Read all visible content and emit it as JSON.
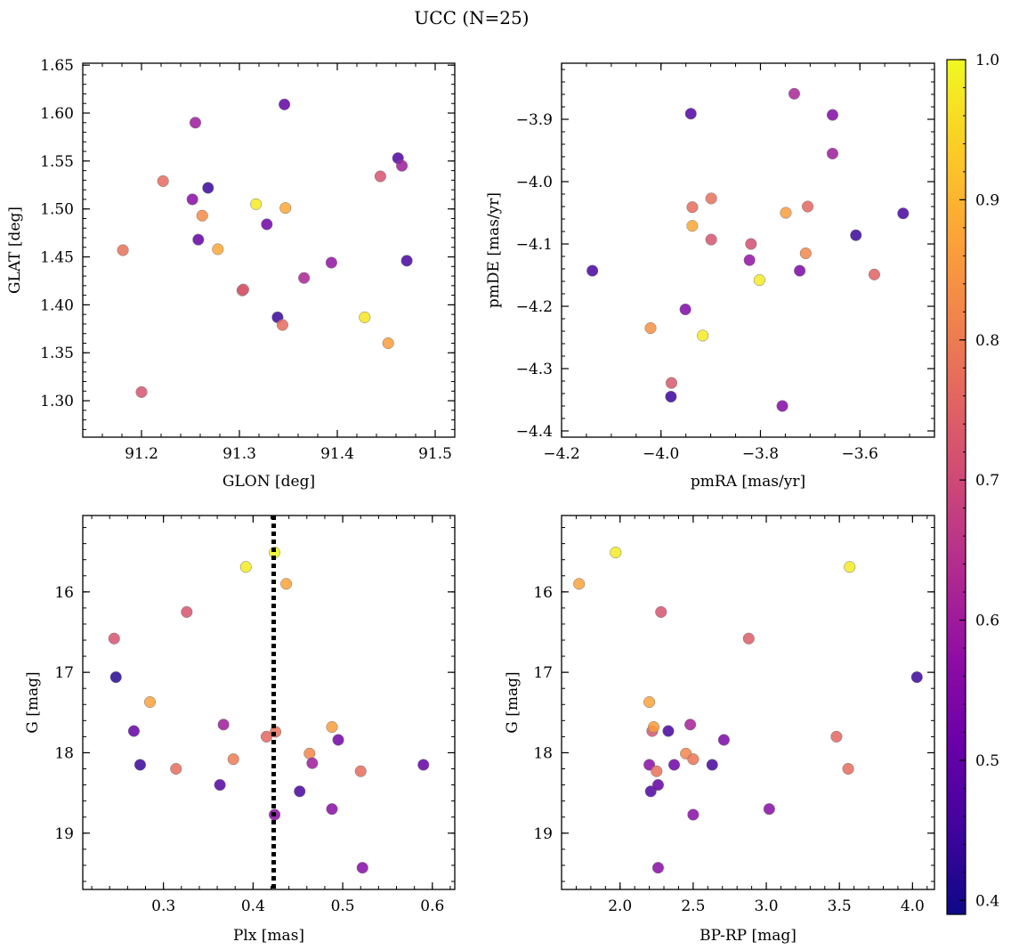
{
  "figure": {
    "title": "UCC (N=25)"
  },
  "colorbar": {
    "colormap": "plasma",
    "range": [
      0.39,
      1.0
    ],
    "ticks": [
      0.4,
      0.5,
      0.6,
      0.7,
      0.8,
      0.9,
      1.0
    ],
    "tick_labels": [
      "0.4",
      "0.5",
      "0.6",
      "0.7",
      "0.8",
      "0.9",
      "1.0"
    ]
  },
  "chart_data": [
    {
      "type": "scatter",
      "id": "glon-glat",
      "xlabel": "GLON [deg]",
      "ylabel": "GLAT [deg]",
      "xlim": [
        91.14,
        91.52
      ],
      "ylim": [
        1.262,
        1.652
      ],
      "y_inverted": false,
      "xticks": [
        91.2,
        91.3,
        91.4,
        91.5
      ],
      "xtick_labels": [
        "91.2",
        "91.3",
        "91.4",
        "91.5"
      ],
      "yticks": [
        1.3,
        1.35,
        1.4,
        1.45,
        1.5,
        1.55,
        1.6,
        1.65
      ],
      "ytick_labels": [
        "1.30",
        "1.35",
        "1.40",
        "1.45",
        "1.50",
        "1.55",
        "1.60",
        "1.65"
      ],
      "x_minor_step": 0.02,
      "y_minor_step": 0.01,
      "points": [
        {
          "x": 91.181,
          "y": 1.457,
          "c": 0.78
        },
        {
          "x": 91.2,
          "y": 1.309,
          "c": 0.72
        },
        {
          "x": 91.222,
          "y": 1.529,
          "c": 0.77
        },
        {
          "x": 91.252,
          "y": 1.51,
          "c": 0.56
        },
        {
          "x": 91.255,
          "y": 1.59,
          "c": 0.6
        },
        {
          "x": 91.258,
          "y": 1.468,
          "c": 0.5
        },
        {
          "x": 91.262,
          "y": 1.493,
          "c": 0.83
        },
        {
          "x": 91.268,
          "y": 1.522,
          "c": 0.44
        },
        {
          "x": 91.278,
          "y": 1.458,
          "c": 0.88
        },
        {
          "x": 91.303,
          "y": 1.415,
          "c": 0.74
        },
        {
          "x": 91.304,
          "y": 1.416,
          "c": 0.73
        },
        {
          "x": 91.317,
          "y": 1.505,
          "c": 0.98
        },
        {
          "x": 91.328,
          "y": 1.484,
          "c": 0.52
        },
        {
          "x": 91.339,
          "y": 1.387,
          "c": 0.44
        },
        {
          "x": 91.344,
          "y": 1.379,
          "c": 0.77
        },
        {
          "x": 91.346,
          "y": 1.609,
          "c": 0.5
        },
        {
          "x": 91.347,
          "y": 1.501,
          "c": 0.88
        },
        {
          "x": 91.366,
          "y": 1.428,
          "c": 0.62
        },
        {
          "x": 91.394,
          "y": 1.444,
          "c": 0.58
        },
        {
          "x": 91.428,
          "y": 1.387,
          "c": 0.97
        },
        {
          "x": 91.444,
          "y": 1.534,
          "c": 0.72
        },
        {
          "x": 91.452,
          "y": 1.36,
          "c": 0.86
        },
        {
          "x": 91.462,
          "y": 1.553,
          "c": 0.47
        },
        {
          "x": 91.466,
          "y": 1.545,
          "c": 0.6
        },
        {
          "x": 91.471,
          "y": 1.446,
          "c": 0.46
        }
      ]
    },
    {
      "type": "scatter",
      "id": "pmra-pmde",
      "xlabel": "pmRA [mas/yr]",
      "ylabel": "pmDE [mas/yr]",
      "xlim": [
        -4.2,
        -3.45
      ],
      "ylim": [
        -4.41,
        -3.81
      ],
      "y_inverted": false,
      "xticks": [
        -4.2,
        -4.0,
        -3.8,
        -3.6
      ],
      "xtick_labels": [
        "−4.2",
        "−4.0",
        "−3.8",
        "−3.6"
      ],
      "yticks": [
        -4.4,
        -4.3,
        -4.2,
        -4.1,
        -4.0,
        -3.9
      ],
      "ytick_labels": [
        "−4.4",
        "−4.3",
        "−4.2",
        "−4.1",
        "−4.0",
        "−3.9"
      ],
      "x_minor_step": 0.05,
      "y_minor_step": 0.02,
      "points": [
        {
          "x": -4.138,
          "y": -4.143,
          "c": 0.46
        },
        {
          "x": -4.021,
          "y": -4.235,
          "c": 0.84
        },
        {
          "x": -3.979,
          "y": -4.323,
          "c": 0.73
        },
        {
          "x": -3.98,
          "y": -4.345,
          "c": 0.44
        },
        {
          "x": -3.951,
          "y": -4.205,
          "c": 0.55
        },
        {
          "x": -3.937,
          "y": -4.041,
          "c": 0.77
        },
        {
          "x": -3.937,
          "y": -4.071,
          "c": 0.88
        },
        {
          "x": -3.94,
          "y": -3.891,
          "c": 0.48
        },
        {
          "x": -3.916,
          "y": -4.247,
          "c": 0.98
        },
        {
          "x": -3.899,
          "y": -4.027,
          "c": 0.78
        },
        {
          "x": -3.899,
          "y": -4.093,
          "c": 0.72
        },
        {
          "x": -3.822,
          "y": -4.126,
          "c": 0.58
        },
        {
          "x": -3.819,
          "y": -4.1,
          "c": 0.71
        },
        {
          "x": -3.802,
          "y": -4.158,
          "c": 0.98
        },
        {
          "x": -3.756,
          "y": -4.36,
          "c": 0.55
        },
        {
          "x": -3.749,
          "y": -4.05,
          "c": 0.86
        },
        {
          "x": -3.732,
          "y": -3.859,
          "c": 0.62
        },
        {
          "x": -3.721,
          "y": -4.143,
          "c": 0.54
        },
        {
          "x": -3.709,
          "y": -4.115,
          "c": 0.82
        },
        {
          "x": -3.705,
          "y": -4.04,
          "c": 0.76
        },
        {
          "x": -3.655,
          "y": -3.893,
          "c": 0.55
        },
        {
          "x": -3.655,
          "y": -3.955,
          "c": 0.6
        },
        {
          "x": -3.608,
          "y": -4.086,
          "c": 0.44
        },
        {
          "x": -3.571,
          "y": -4.149,
          "c": 0.75
        },
        {
          "x": -3.513,
          "y": -4.051,
          "c": 0.46
        }
      ]
    },
    {
      "type": "scatter",
      "id": "plx-g",
      "xlabel": "Plx [mas]",
      "ylabel": "G [mag]",
      "xlim": [
        0.21,
        0.625
      ],
      "ylim": [
        15.05,
        19.7
      ],
      "y_inverted": true,
      "xticks": [
        0.3,
        0.4,
        0.5,
        0.6
      ],
      "xtick_labels": [
        "0.3",
        "0.4",
        "0.5",
        "0.6"
      ],
      "yticks": [
        16,
        17,
        18,
        19
      ],
      "ytick_labels": [
        "16",
        "17",
        "18",
        "19"
      ],
      "x_minor_step": 0.02,
      "y_minor_step": 0.2,
      "vline": {
        "x": 0.423,
        "style": "dotted"
      },
      "points": [
        {
          "x": 0.245,
          "y": 16.58,
          "c": 0.72
        },
        {
          "x": 0.247,
          "y": 17.06,
          "c": 0.42
        },
        {
          "x": 0.267,
          "y": 17.73,
          "c": 0.5
        },
        {
          "x": 0.274,
          "y": 18.15,
          "c": 0.44
        },
        {
          "x": 0.285,
          "y": 17.37,
          "c": 0.87
        },
        {
          "x": 0.314,
          "y": 18.2,
          "c": 0.77
        },
        {
          "x": 0.326,
          "y": 16.25,
          "c": 0.72
        },
        {
          "x": 0.363,
          "y": 18.4,
          "c": 0.48
        },
        {
          "x": 0.367,
          "y": 17.65,
          "c": 0.6
        },
        {
          "x": 0.378,
          "y": 18.08,
          "c": 0.8
        },
        {
          "x": 0.392,
          "y": 15.69,
          "c": 0.98
        },
        {
          "x": 0.415,
          "y": 17.8,
          "c": 0.76
        },
        {
          "x": 0.424,
          "y": 15.51,
          "c": 1.0
        },
        {
          "x": 0.425,
          "y": 17.74,
          "c": 0.78
        },
        {
          "x": 0.424,
          "y": 18.77,
          "c": 0.56
        },
        {
          "x": 0.437,
          "y": 15.9,
          "c": 0.87
        },
        {
          "x": 0.452,
          "y": 18.48,
          "c": 0.46
        },
        {
          "x": 0.463,
          "y": 18.01,
          "c": 0.82
        },
        {
          "x": 0.466,
          "y": 18.13,
          "c": 0.6
        },
        {
          "x": 0.488,
          "y": 17.68,
          "c": 0.86
        },
        {
          "x": 0.488,
          "y": 18.7,
          "c": 0.56
        },
        {
          "x": 0.495,
          "y": 17.84,
          "c": 0.52
        },
        {
          "x": 0.52,
          "y": 18.23,
          "c": 0.77
        },
        {
          "x": 0.522,
          "y": 19.43,
          "c": 0.56
        },
        {
          "x": 0.59,
          "y": 18.15,
          "c": 0.5
        }
      ]
    },
    {
      "type": "scatter",
      "id": "bprp-g",
      "xlabel": "BP-RP [mag]",
      "ylabel": "G [mag]",
      "xlim": [
        1.6,
        4.15
      ],
      "ylim": [
        15.05,
        19.7
      ],
      "y_inverted": true,
      "xticks": [
        2.0,
        2.5,
        3.0,
        3.5,
        4.0
      ],
      "xtick_labels": [
        "2.0",
        "2.5",
        "3.0",
        "3.5",
        "4.0"
      ],
      "yticks": [
        16,
        17,
        18,
        19
      ],
      "ytick_labels": [
        "16",
        "17",
        "18",
        "19"
      ],
      "x_minor_step": 0.1,
      "y_minor_step": 0.2,
      "points": [
        {
          "x": 1.72,
          "y": 15.9,
          "c": 0.87
        },
        {
          "x": 1.97,
          "y": 15.51,
          "c": 0.98
        },
        {
          "x": 2.2,
          "y": 17.37,
          "c": 0.87
        },
        {
          "x": 2.2,
          "y": 18.15,
          "c": 0.56
        },
        {
          "x": 2.21,
          "y": 18.48,
          "c": 0.47
        },
        {
          "x": 2.22,
          "y": 17.73,
          "c": 0.72
        },
        {
          "x": 2.23,
          "y": 17.68,
          "c": 0.86
        },
        {
          "x": 2.25,
          "y": 18.23,
          "c": 0.78
        },
        {
          "x": 2.26,
          "y": 18.4,
          "c": 0.5
        },
        {
          "x": 2.26,
          "y": 19.43,
          "c": 0.56
        },
        {
          "x": 2.28,
          "y": 16.25,
          "c": 0.72
        },
        {
          "x": 2.33,
          "y": 17.73,
          "c": 0.46
        },
        {
          "x": 2.37,
          "y": 18.15,
          "c": 0.52
        },
        {
          "x": 2.45,
          "y": 18.01,
          "c": 0.82
        },
        {
          "x": 2.48,
          "y": 17.65,
          "c": 0.61
        },
        {
          "x": 2.5,
          "y": 18.08,
          "c": 0.79
        },
        {
          "x": 2.5,
          "y": 18.77,
          "c": 0.56
        },
        {
          "x": 2.63,
          "y": 18.15,
          "c": 0.46
        },
        {
          "x": 2.71,
          "y": 17.84,
          "c": 0.54
        },
        {
          "x": 2.88,
          "y": 16.58,
          "c": 0.74
        },
        {
          "x": 3.02,
          "y": 18.7,
          "c": 0.56
        },
        {
          "x": 3.48,
          "y": 17.8,
          "c": 0.76
        },
        {
          "x": 3.56,
          "y": 18.2,
          "c": 0.77
        },
        {
          "x": 3.57,
          "y": 15.69,
          "c": 0.98
        },
        {
          "x": 4.03,
          "y": 17.06,
          "c": 0.44
        }
      ]
    }
  ]
}
